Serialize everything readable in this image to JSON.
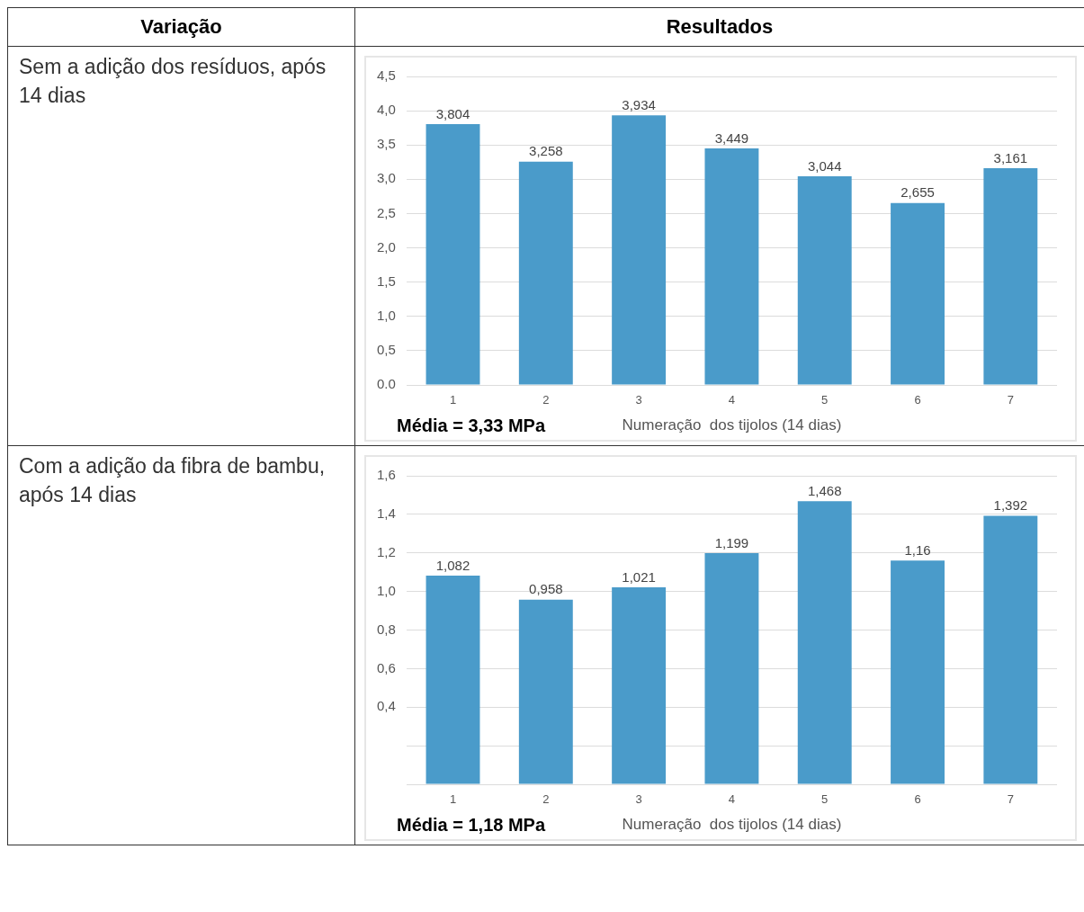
{
  "chart_data": [
    {
      "type": "bar",
      "title": "Sem a adição dos resíduos, após 14 dias",
      "xlabel": "Numeração  dos tijolos (14 dias)",
      "categories": [
        "1",
        "2",
        "3",
        "4",
        "5",
        "6",
        "7"
      ],
      "values": [
        3.804,
        3.258,
        3.934,
        3.449,
        3.044,
        2.655,
        3.161
      ],
      "color": "#4a9bca",
      "ylim": [
        0,
        4.5
      ],
      "yticks": [
        {
          "value": 0,
          "label": "0.0"
        },
        {
          "value": 0.5,
          "label": "0,5"
        },
        {
          "value": 1,
          "label": "1,0"
        },
        {
          "value": 1.5,
          "label": "1,5"
        },
        {
          "value": 2,
          "label": "2,0"
        },
        {
          "value": 2.5,
          "label": "2,5"
        },
        {
          "value": 3,
          "label": "3,0"
        },
        {
          "value": 3.5,
          "label": "3,5"
        },
        {
          "value": 4,
          "label": "4,0"
        },
        {
          "value": 4.5,
          "label": "4,5"
        }
      ],
      "grid": "y",
      "value_labels": [
        "3,804",
        "3,258",
        "3,934",
        "3,449",
        "3,044",
        "2,655",
        "3,161"
      ],
      "annotations": [
        "Variação",
        "Resultados",
        "Média = 3,33 MPa"
      ]
    },
    {
      "type": "bar",
      "title": "Com a adição da fibra de bambu, após 14 dias",
      "xlabel": "Numeração  dos tijolos (14 dias)",
      "categories": [
        "1",
        "2",
        "3",
        "4",
        "5",
        "6",
        "7"
      ],
      "values": [
        1.082,
        0.958,
        1.021,
        1.199,
        1.468,
        1.16,
        1.392
      ],
      "color": "#4a9bca",
      "ylim": [
        0,
        1.6
      ],
      "yticks": [
        {
          "value": 0,
          "label": null
        },
        {
          "value": 0.2,
          "label": null
        },
        {
          "value": 0.4,
          "label": "0,4"
        },
        {
          "value": 0.6,
          "label": "0,6"
        },
        {
          "value": 0.8,
          "label": "0,8"
        },
        {
          "value": 1,
          "label": "1,0"
        },
        {
          "value": 1.2,
          "label": "1,2"
        },
        {
          "value": 1.4,
          "label": "1,4"
        },
        {
          "value": 1.6,
          "label": "1,6"
        }
      ],
      "grid": "y",
      "value_labels": [
        "1,082",
        "0,958",
        "1,021",
        "1,199",
        "1,468",
        "1,16",
        "1,392"
      ],
      "annotations": [
        "Média = 1,18 MPa"
      ]
    }
  ]
}
